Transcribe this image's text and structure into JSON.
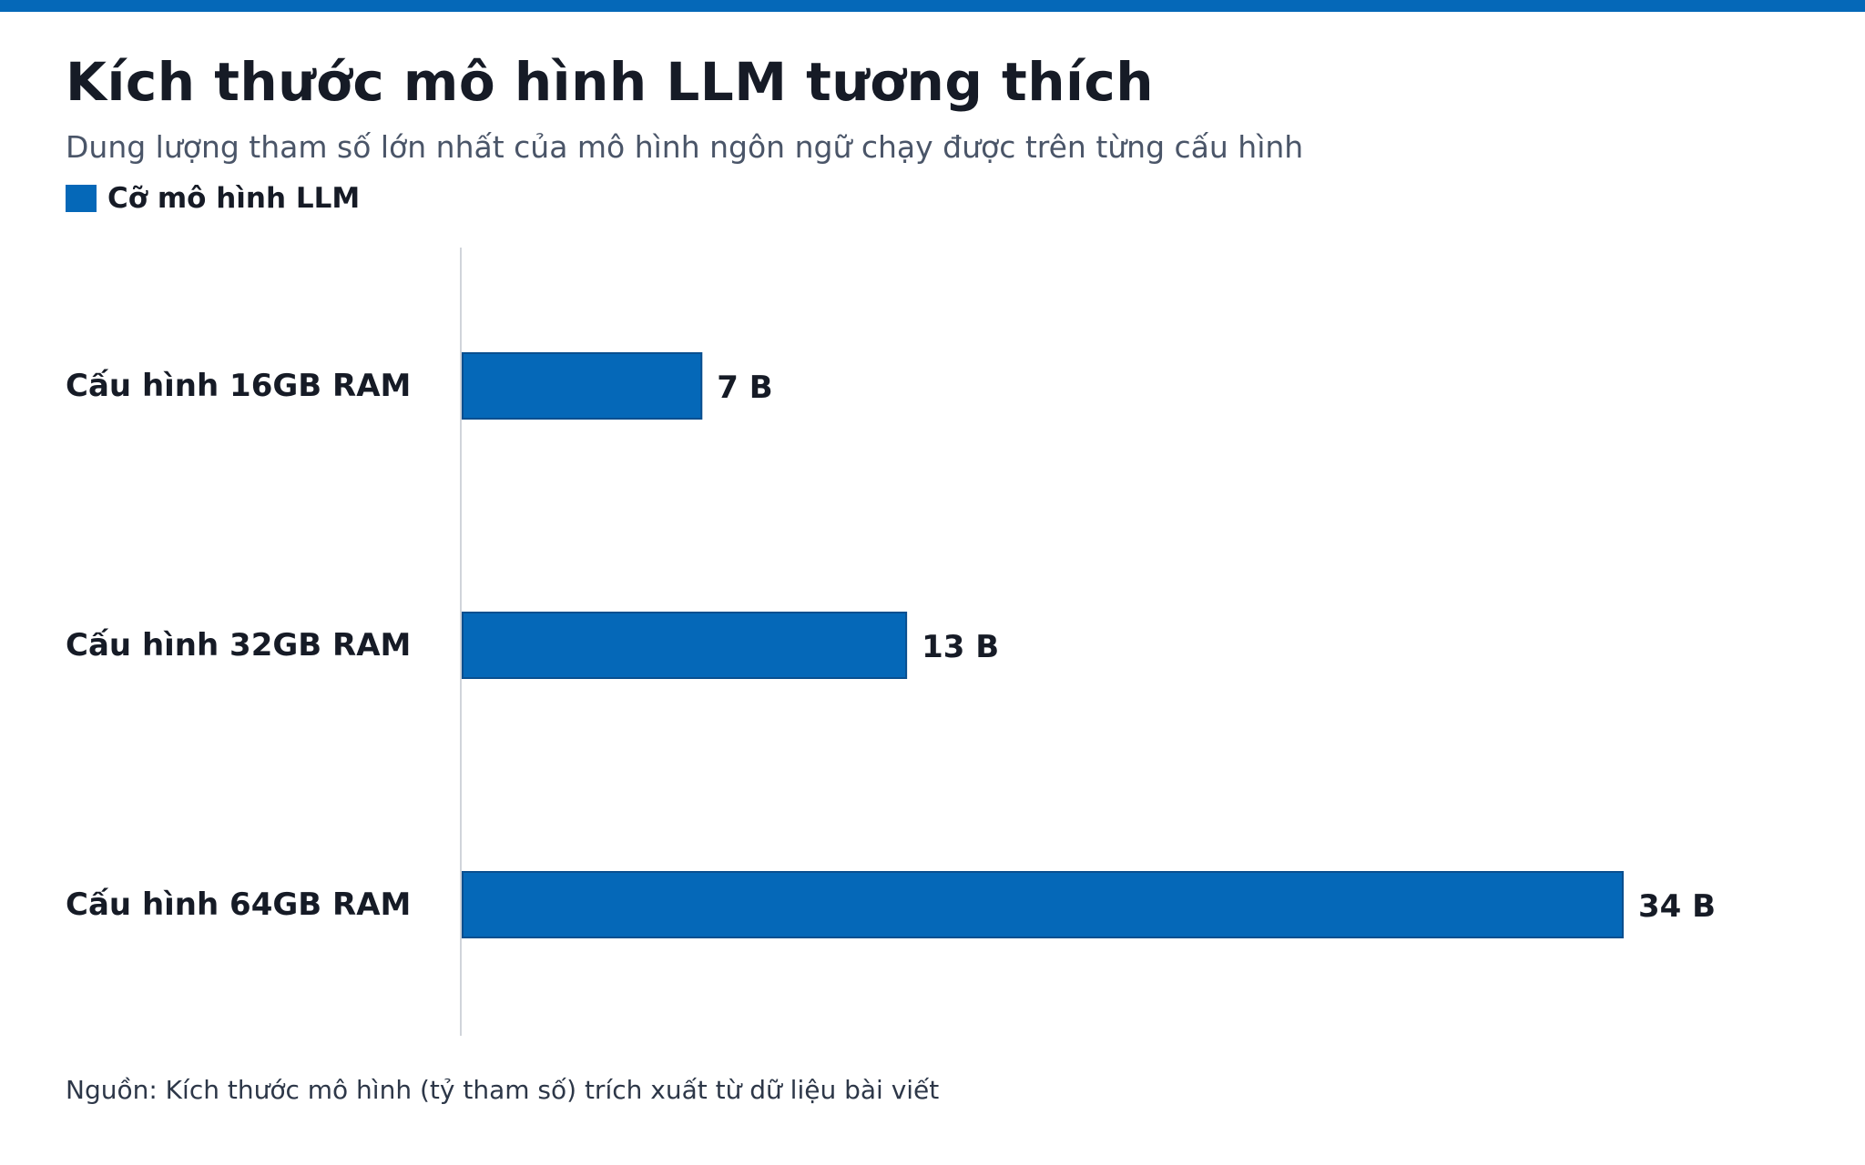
{
  "colors": {
    "accent": "#0568b8",
    "bar": "#0568b8",
    "bar_stroke": "#0a4f8f",
    "axis": "#d0d4da",
    "text": "#161b26",
    "muted": "#4a5568"
  },
  "header": {
    "title": "Kích thước mô hình LLM tương thích",
    "subtitle": "Dung lượng tham số lớn nhất của mô hình ngôn ngữ chạy được trên từng cấu hình"
  },
  "footer": {
    "source": "Nguồn: Kích thước mô hình (tỷ tham số) trích xuất từ dữ liệu bài viết"
  },
  "chart_data": {
    "type": "bar",
    "orientation": "horizontal",
    "title": "Kích thước mô hình LLM tương thích",
    "subtitle": "Dung lượng tham số lớn nhất của mô hình ngôn ngữ chạy được trên từng cấu hình",
    "categories": [
      "Cấu hình 16GB RAM",
      "Cấu hình 32GB RAM",
      "Cấu hình 64GB RAM"
    ],
    "series": [
      {
        "name": "Cỡ mô hình LLM",
        "values": [
          7,
          13,
          34
        ],
        "labels": [
          "7 B",
          "13 B",
          "34 B"
        ]
      }
    ],
    "xlabel": "",
    "ylabel": "",
    "xlim": [
      0,
      34
    ],
    "grid": false,
    "legend": "top-left"
  }
}
